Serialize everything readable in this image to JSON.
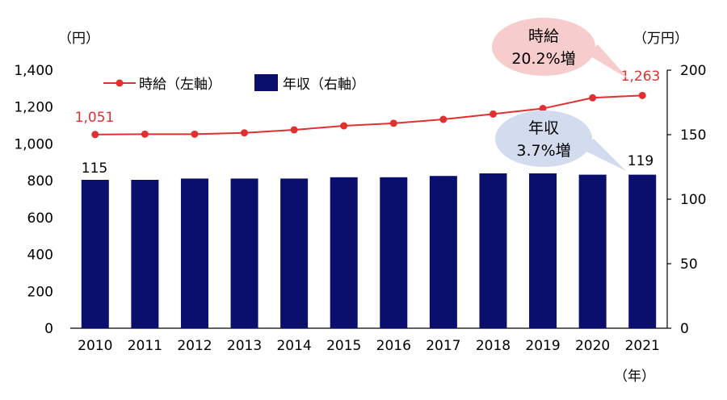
{
  "chart_data": {
    "type": "bar+line",
    "categories": [
      "2010",
      "2011",
      "2012",
      "2013",
      "2014",
      "2015",
      "2016",
      "2017",
      "2018",
      "2019",
      "2020",
      "2021"
    ],
    "series": [
      {
        "name": "年収（右軸）",
        "type": "bar",
        "axis": "right",
        "values": [
          115,
          115,
          116,
          116,
          116,
          117,
          117,
          118,
          120,
          120,
          119,
          119
        ],
        "color": "#0a0f6e"
      },
      {
        "name": "時給（左軸）",
        "type": "line",
        "axis": "left",
        "values": [
          1051,
          1053,
          1053,
          1060,
          1076,
          1098,
          1112,
          1133,
          1162,
          1192,
          1250,
          1263
        ],
        "color": "#e03030"
      }
    ],
    "left_axis": {
      "unit": "（円）",
      "min": 0,
      "max": 1400,
      "ticks": [
        "0",
        "200",
        "400",
        "600",
        "800",
        "1,000",
        "1,200",
        "1,400"
      ]
    },
    "right_axis": {
      "unit": "（万円）",
      "min": 0,
      "max": 200,
      "ticks": [
        "0",
        "50",
        "100",
        "150",
        "200"
      ]
    },
    "x_axis_unit": "（年）",
    "data_labels": {
      "line_first": "1,051",
      "line_last": "1,263",
      "bar_first": "115",
      "bar_last": "119"
    },
    "callouts": [
      {
        "line1": "時給",
        "line2": "20.2%増",
        "fill": "#f6cccc"
      },
      {
        "line1": "年収",
        "line2": "3.7%増",
        "fill": "#d3dcef"
      }
    ],
    "legend_position": "top-left"
  }
}
